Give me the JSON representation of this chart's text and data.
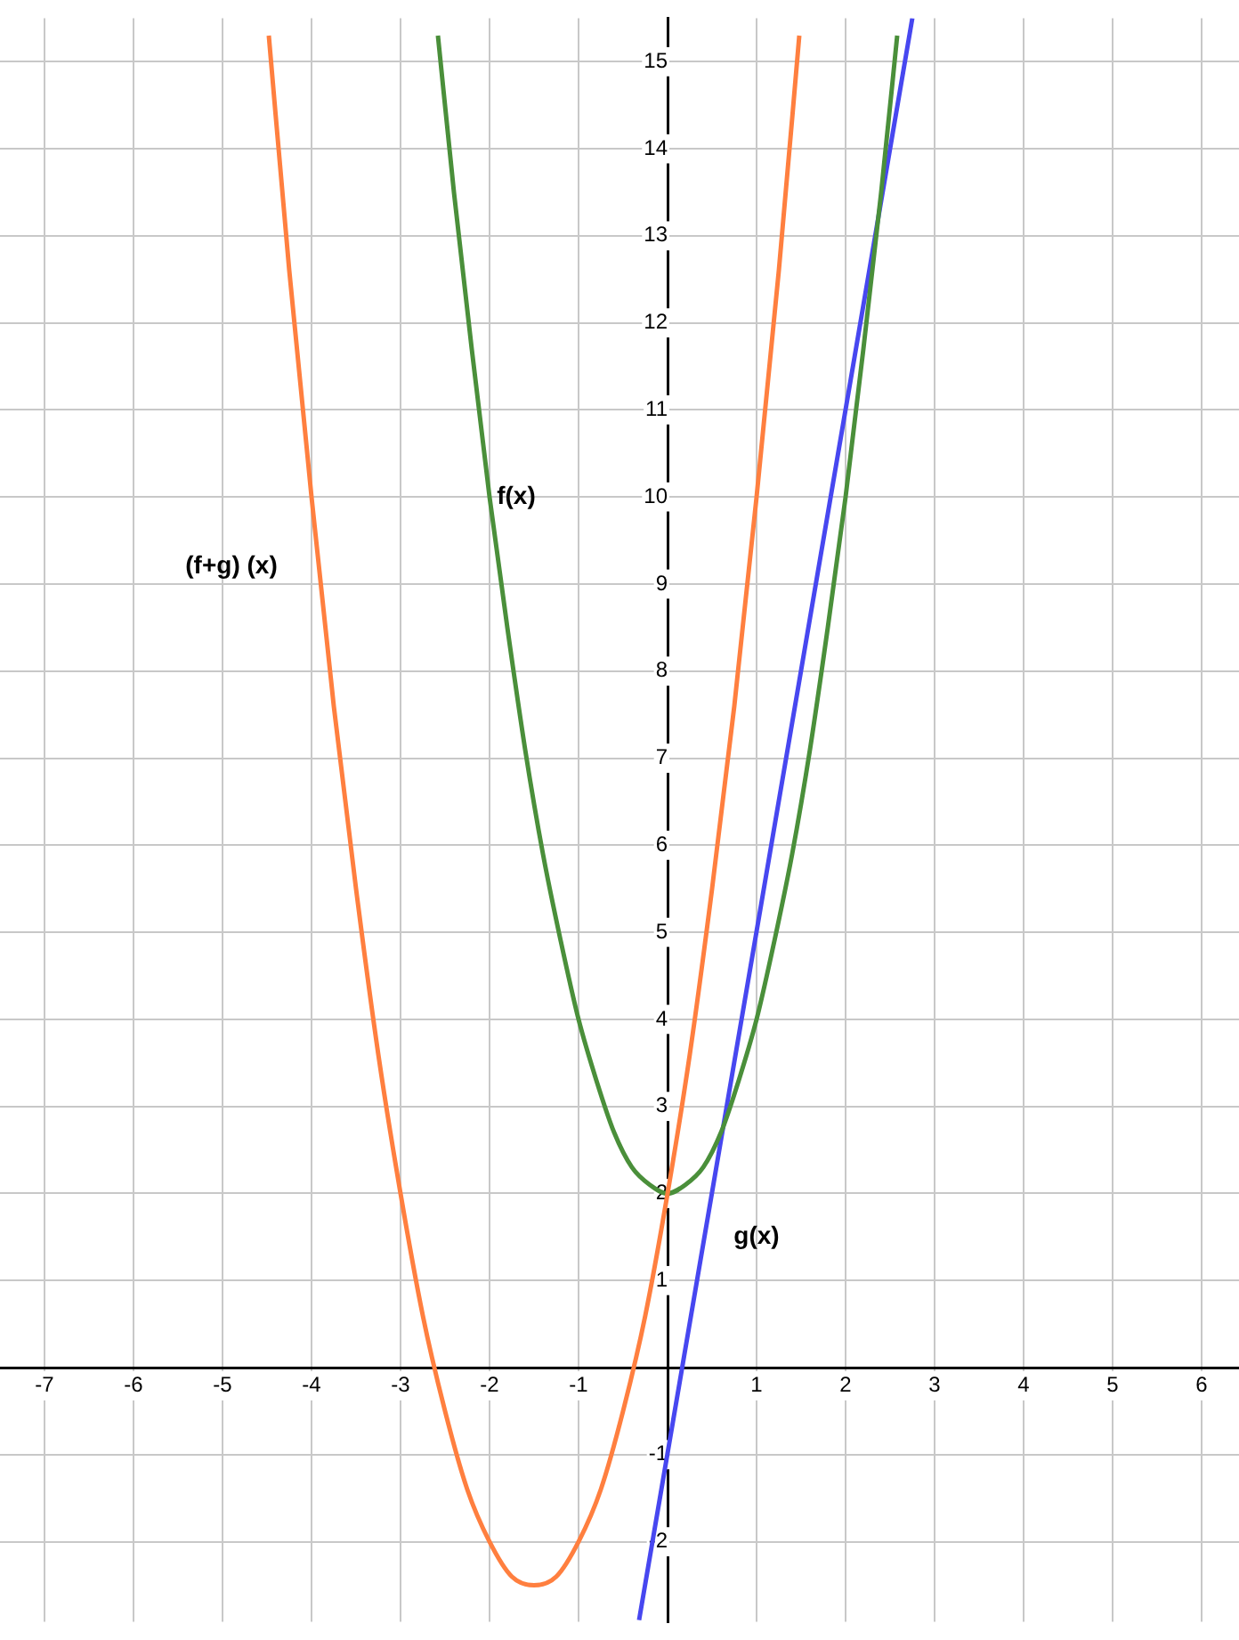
{
  "chart_data": {
    "type": "line",
    "xlim": [
      -7.5,
      6.42
    ],
    "ylim": [
      -2.92,
      15.5
    ],
    "xticks": [
      -7,
      -6,
      -5,
      -4,
      -3,
      -2,
      -1,
      1,
      2,
      3,
      4,
      5,
      6
    ],
    "yticks": [
      -2,
      -1,
      1,
      2,
      3,
      4,
      5,
      6,
      7,
      8,
      9,
      10,
      11,
      12,
      13,
      14,
      15
    ],
    "grid": true,
    "marker": "none",
    "line_style": "solid",
    "series": [
      {
        "name": "(f+g) (x)",
        "color": "#ff7f3f",
        "x": [
          -4.48,
          -4.25,
          -4,
          -3.75,
          -3.5,
          -3.25,
          -3,
          -2.75,
          -2.5,
          -2.25,
          -2,
          -1.75,
          -1.5,
          -1.25,
          -1,
          -0.75,
          -0.5,
          -0.25,
          0,
          0.25,
          0.5,
          0.75,
          1,
          1.25,
          1.48
        ],
        "values": [
          15.3,
          12.6,
          10,
          7.6,
          5.5,
          3.6,
          2,
          0.6,
          -0.5,
          -1.4,
          -2,
          -2.4,
          -2.5,
          -2.4,
          -2,
          -1.4,
          -0.5,
          0.6,
          2,
          3.6,
          5.5,
          7.6,
          10,
          12.6,
          15.3
        ]
      },
      {
        "name": "f(x)",
        "color": "#4a8f3a",
        "x": [
          -2.58,
          -2.4,
          -2.2,
          -2,
          -1.8,
          -1.6,
          -1.4,
          -1.2,
          -1,
          -0.8,
          -0.6,
          -0.4,
          -0.2,
          0,
          0.2,
          0.4,
          0.6,
          0.8,
          1,
          1.2,
          1.4,
          1.6,
          1.8,
          2,
          2.2,
          2.4,
          2.58
        ],
        "values": [
          15.3,
          13.5,
          11.7,
          10,
          8.5,
          7.1,
          5.9,
          4.9,
          4,
          3.3,
          2.7,
          2.3,
          2.1,
          2,
          2.1,
          2.3,
          2.7,
          3.3,
          4,
          4.9,
          5.9,
          7.1,
          8.5,
          10,
          11.7,
          13.5,
          15.3
        ]
      },
      {
        "name": "g(x)",
        "color": "#4747f0",
        "x": [
          -0.32,
          2.75
        ],
        "values": [
          -2.9,
          15.5
        ]
      }
    ]
  }
}
